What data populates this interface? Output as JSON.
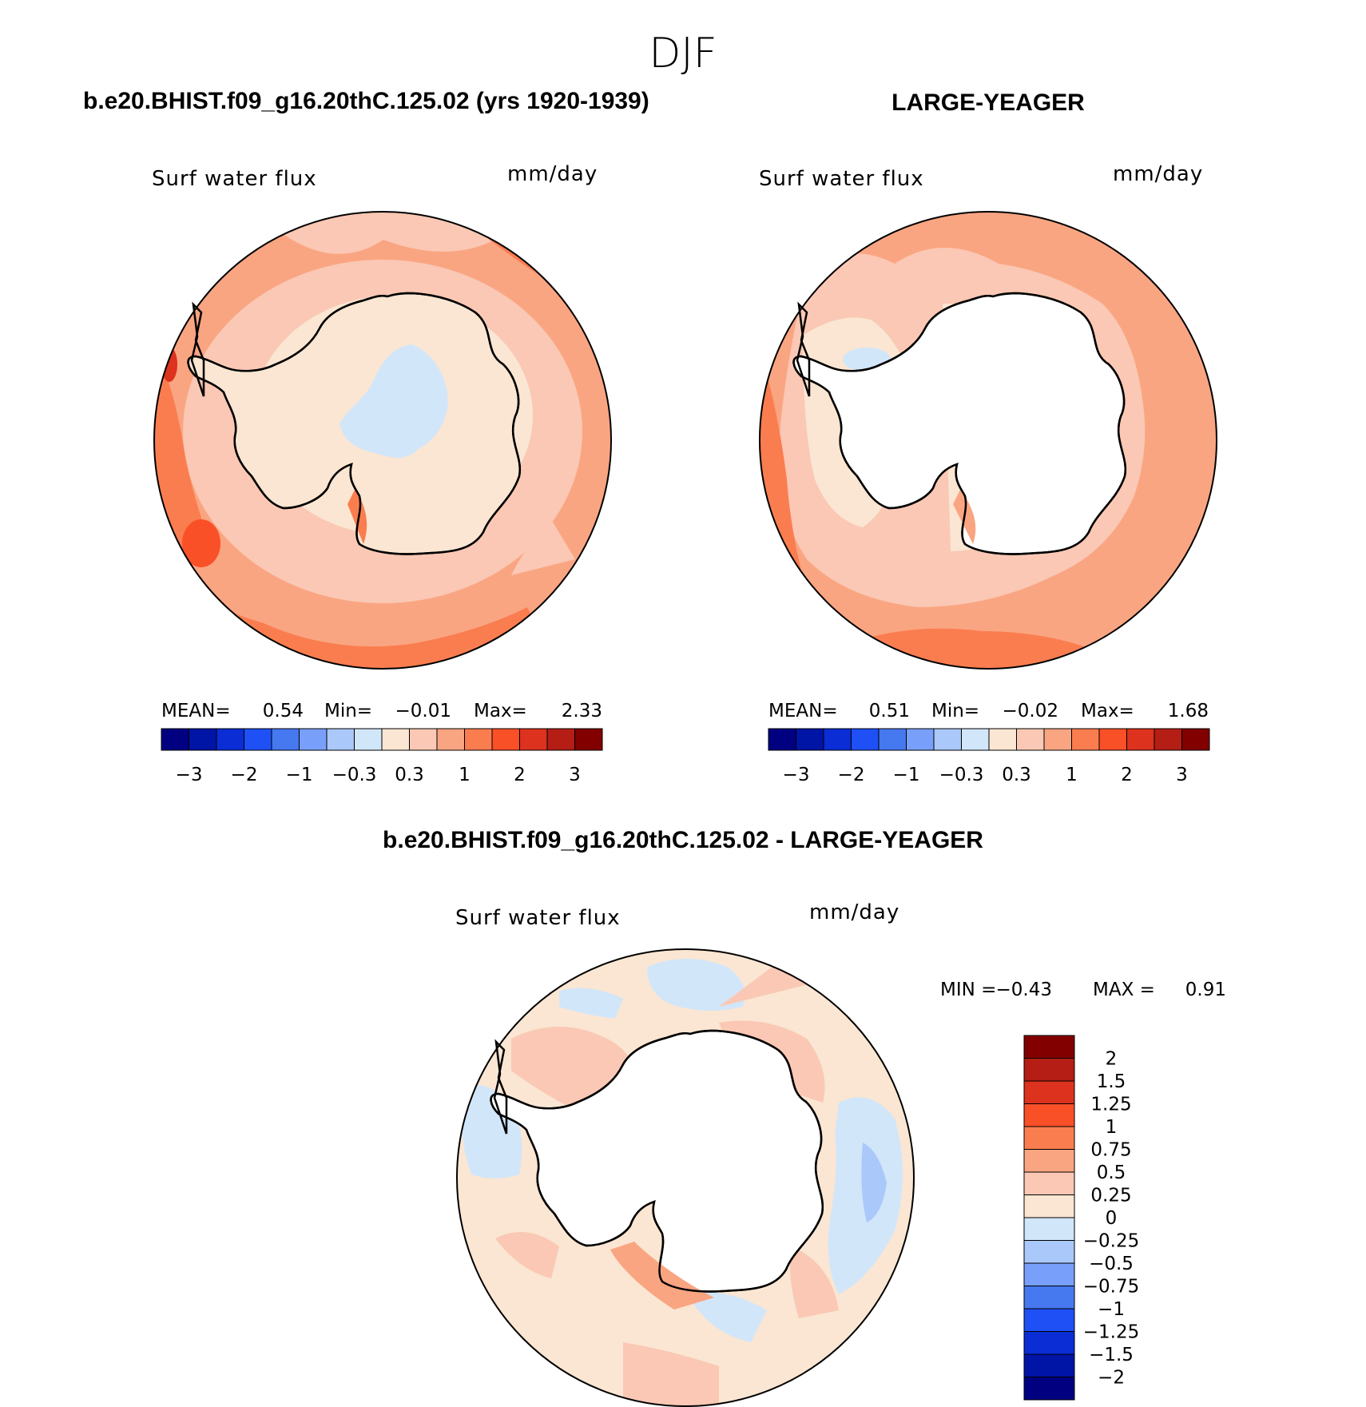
{
  "season": "DJF",
  "colors": {
    "neg": [
      "#000080",
      "#0014a5",
      "#0a2dd6",
      "#1e50f5",
      "#4678f0",
      "#78a0fa",
      "#aac8fa",
      "#d2e6fa"
    ],
    "pos": [
      "#fae6d2",
      "#fac8b4",
      "#faa582",
      "#fa7d50",
      "#fa5028",
      "#dc321e",
      "#b41e14",
      "#820000"
    ],
    "land": "#ffffff"
  },
  "chart_data": [
    {
      "type": "heatmap",
      "id": "model",
      "title": "b.e20.BHIST.f09_g16.20thC.125.02 (yrs 1920-1939)",
      "variable": "Surf water flux",
      "units": "mm/day",
      "stats": {
        "mean_label": "MEAN=",
        "mean": "0.54",
        "min_label": "Min=",
        "min": "−0.01",
        "max_label": "Max=",
        "max": "2.33"
      },
      "colorbar_ticks": [
        "−3",
        "−2",
        "−1",
        "−0.3",
        "0.3",
        "1",
        "2",
        "3"
      ]
    },
    {
      "type": "heatmap",
      "id": "obs",
      "title": "LARGE-YEAGER",
      "variable": "Surf water flux",
      "units": "mm/day",
      "stats": {
        "mean_label": "MEAN=",
        "mean": "0.51",
        "min_label": "Min=",
        "min": "−0.02",
        "max_label": "Max=",
        "max": "1.68"
      },
      "colorbar_ticks": [
        "−3",
        "−2",
        "−1",
        "−0.3",
        "0.3",
        "1",
        "2",
        "3"
      ]
    },
    {
      "type": "heatmap",
      "id": "diff",
      "title": "b.e20.BHIST.f09_g16.20thC.125.02 - LARGE-YEAGER",
      "variable": "Surf water flux",
      "units": "mm/day",
      "stats": {
        "min_label": "MIN =",
        "min": "−0.43",
        "max_label": "MAX =",
        "max": "0.91"
      },
      "colorbar_levels": [
        "2",
        "1.5",
        "1.25",
        "1",
        "0.75",
        "0.5",
        "0.25",
        "0",
        "−0.25",
        "−0.5",
        "−0.75",
        "−1",
        "−1.25",
        "−1.5",
        "−2"
      ]
    }
  ]
}
